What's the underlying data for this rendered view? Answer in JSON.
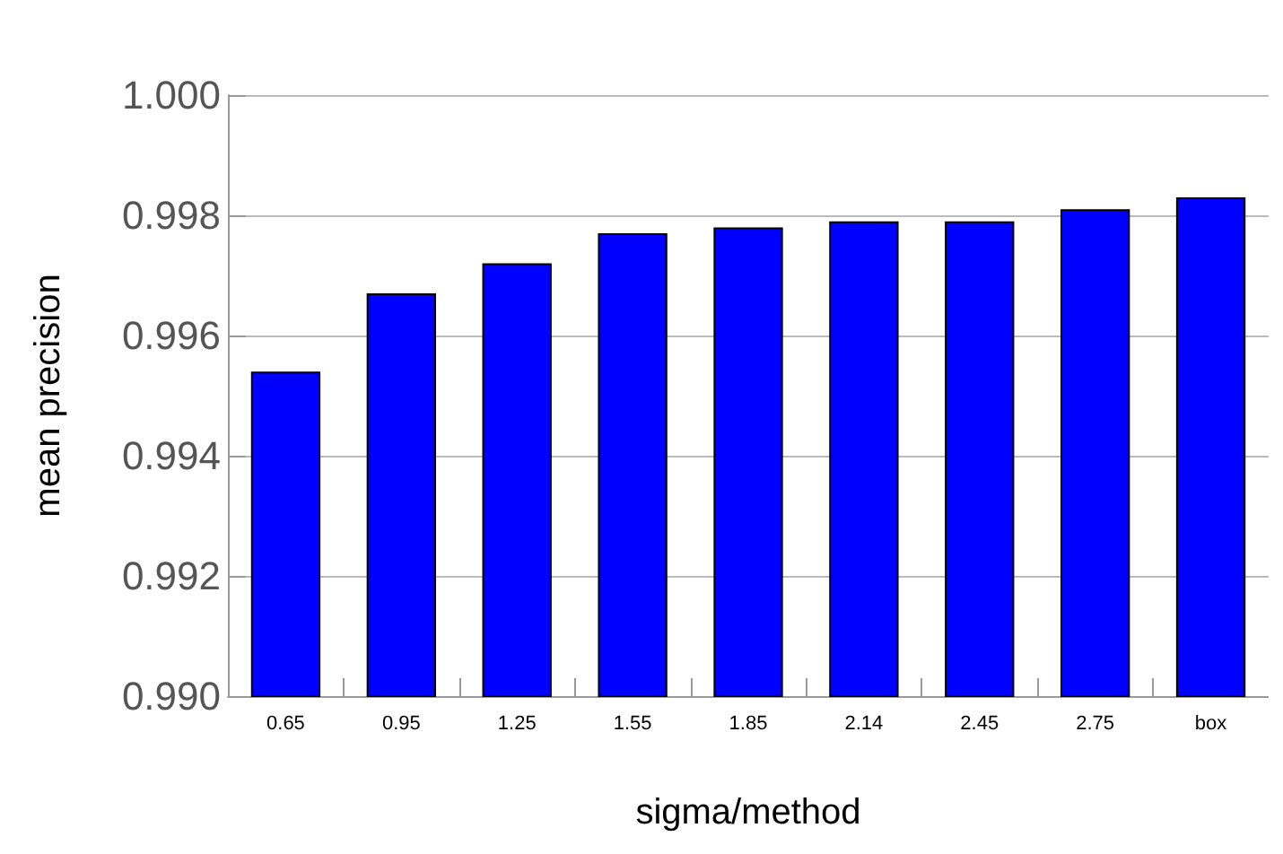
{
  "chart_data": {
    "type": "bar",
    "xlabel": "sigma/method",
    "ylabel": "mean precision",
    "categories": [
      "0.65",
      "0.95",
      "1.25",
      "1.55",
      "1.85",
      "2.14",
      "2.45",
      "2.75",
      "box"
    ],
    "values": [
      0.9954,
      0.9967,
      0.9972,
      0.9977,
      0.9978,
      0.9979,
      0.9979,
      0.9981,
      0.9983
    ],
    "color": "#0000ff",
    "ylim": [
      0.99,
      1.0
    ],
    "yticks": [
      {
        "value": 0.99,
        "label": "0.990"
      },
      {
        "value": 0.992,
        "label": "0.992"
      },
      {
        "value": 0.994,
        "label": "0.994"
      },
      {
        "value": 0.996,
        "label": "0.996"
      },
      {
        "value": 0.998,
        "label": "0.998"
      },
      {
        "value": 1.0,
        "label": "1.000"
      }
    ],
    "grid": "y"
  }
}
